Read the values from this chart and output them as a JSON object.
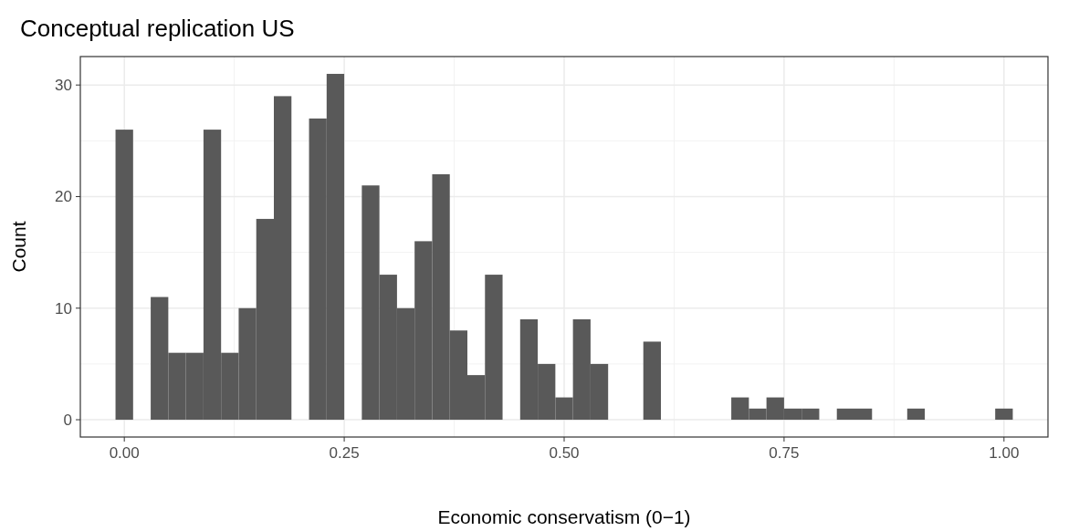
{
  "chart_data": {
    "type": "histogram",
    "title": "Conceptual replication US",
    "xlabel": "Economic conservatism (0−1)",
    "ylabel": "Count",
    "color": "#595959",
    "bins": [
      -0.01,
      0.01,
      0.03,
      0.05,
      0.07,
      0.09,
      0.11,
      0.13,
      0.15,
      0.17,
      0.19,
      0.21,
      0.23,
      0.25,
      0.27,
      0.29,
      0.31,
      0.33,
      0.35,
      0.37,
      0.39,
      0.41,
      0.43,
      0.45,
      0.47,
      0.49,
      0.51,
      0.53,
      0.55,
      0.57,
      0.59,
      0.61,
      0.63,
      0.65,
      0.67,
      0.69,
      0.71,
      0.73,
      0.75,
      0.77,
      0.79,
      0.81,
      0.83,
      0.85,
      0.87,
      0.89,
      0.91,
      0.93,
      0.95,
      0.97,
      0.99,
      1.01
    ],
    "values": [
      26,
      0,
      11,
      6,
      6,
      26,
      6,
      10,
      18,
      29,
      0,
      27,
      31,
      0,
      21,
      13,
      10,
      16,
      22,
      8,
      4,
      13,
      0,
      9,
      5,
      2,
      9,
      5,
      0,
      0,
      7,
      0,
      0,
      0,
      0,
      2,
      1,
      2,
      1,
      1,
      0,
      1,
      1,
      0,
      0,
      1,
      0,
      0,
      0,
      0,
      1
    ],
    "xlim": [
      -0.05,
      1.05
    ],
    "ylim": [
      -1.55,
      32.55
    ],
    "xticks": [
      {
        "value": 0,
        "label": "0.00"
      },
      {
        "value": 0.25,
        "label": "0.25"
      },
      {
        "value": 0.5,
        "label": "0.50"
      },
      {
        "value": 0.75,
        "label": "0.75"
      },
      {
        "value": 1,
        "label": "1.00"
      }
    ],
    "yticks": [
      0,
      10,
      20,
      30
    ],
    "grid": true
  }
}
